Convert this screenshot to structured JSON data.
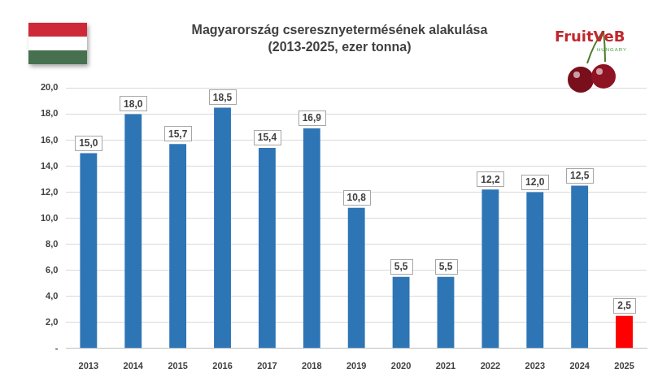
{
  "chart_data": {
    "type": "bar",
    "title": "Magyarország cseresznyetermésének alakulása",
    "subtitle": "(2013-2025, ezer tonna)",
    "annotations": [
      "FruitVeB",
      "HUNGARY"
    ],
    "categories": [
      "2013",
      "2014",
      "2015",
      "2016",
      "2017",
      "2018",
      "2019",
      "2020",
      "2021",
      "2022",
      "2023",
      "2024",
      "2025"
    ],
    "values": [
      15.0,
      18.0,
      15.7,
      18.5,
      15.4,
      16.9,
      10.8,
      5.5,
      5.5,
      12.2,
      12.0,
      12.5,
      2.5
    ],
    "value_labels": [
      "15,0",
      "18,0",
      "15,7",
      "18,5",
      "15,4",
      "16,9",
      "10,8",
      "5,5",
      "5,5",
      "12,2",
      "12,0",
      "12,5",
      "2,5"
    ],
    "colors": [
      "#2e75b6",
      "#2e75b6",
      "#2e75b6",
      "#2e75b6",
      "#2e75b6",
      "#2e75b6",
      "#2e75b6",
      "#2e75b6",
      "#2e75b6",
      "#2e75b6",
      "#2e75b6",
      "#2e75b6",
      "#ff0000"
    ],
    "ylim": [
      0,
      20
    ],
    "yticks": [
      {
        "value": 0,
        "label": "-"
      },
      {
        "value": 2,
        "label": "2,0"
      },
      {
        "value": 4,
        "label": "4,0"
      },
      {
        "value": 6,
        "label": "6,0"
      },
      {
        "value": 8,
        "label": "8,0"
      },
      {
        "value": 10,
        "label": "10,0"
      },
      {
        "value": 12,
        "label": "12,0"
      },
      {
        "value": 14,
        "label": "14,0"
      },
      {
        "value": 16,
        "label": "16,0"
      },
      {
        "value": 18,
        "label": "18,0"
      },
      {
        "value": 20,
        "label": "20,0"
      }
    ],
    "grid": true,
    "data_labels": true
  }
}
